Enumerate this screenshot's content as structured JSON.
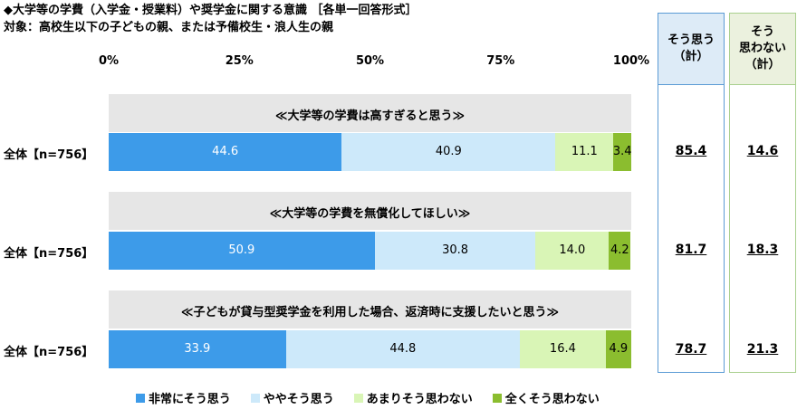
{
  "header": {
    "title": "◆大学等の学費（入学金・授業料）や奨学金に関する意識 ［各単一回答形式］",
    "subtitle": "対象：高校生以下の子どもの親、または予備校生・浪人生の親"
  },
  "summary": {
    "agree_header_line1": "そう思う",
    "agree_header_line2": "（計）",
    "disagree_header_line1": "そう",
    "disagree_header_line2": "思わない",
    "disagree_header_line3": "（計）",
    "agree_values": [
      "85.4",
      "81.7",
      "78.7"
    ],
    "disagree_values": [
      "14.6",
      "18.3",
      "21.3"
    ],
    "agree_border": "#5b9bd5",
    "agree_bg": "#ddebf7",
    "disagree_border": "#a9d08e",
    "disagree_bg": "#ebf1de"
  },
  "chart_data": {
    "type": "bar",
    "orientation": "horizontal-stacked-100",
    "xlim": [
      0,
      100
    ],
    "tick_labels": [
      "0%",
      "25%",
      "50%",
      "75%",
      "100%"
    ],
    "questions": [
      "≪大学等の学費は高すぎると思う≫",
      "≪大学等の学費を無償化してほしい≫",
      "≪子どもが貸与型奨学金を利用した場合、返済時に支援したいと思う≫"
    ],
    "categories": [
      "全体【n=756】",
      "全体【n=756】",
      "全体【n=756】"
    ],
    "series": [
      {
        "name": "非常にそう思う",
        "color": "#3d9be9",
        "label_color": "#ffffff",
        "values": [
          44.6,
          50.9,
          33.9
        ]
      },
      {
        "name": "ややそう思う",
        "color": "#cde9fa",
        "label_color": "#000000",
        "values": [
          40.9,
          30.8,
          44.8
        ]
      },
      {
        "name": "あまりそう思わない",
        "color": "#d9f5b6",
        "label_color": "#000000",
        "values": [
          11.1,
          14.0,
          16.4
        ]
      },
      {
        "name": "全くそう思わない",
        "color": "#8bbd2f",
        "label_color": "#000000",
        "values": [
          3.4,
          4.2,
          4.9
        ]
      }
    ],
    "legend_position": "bottom"
  }
}
